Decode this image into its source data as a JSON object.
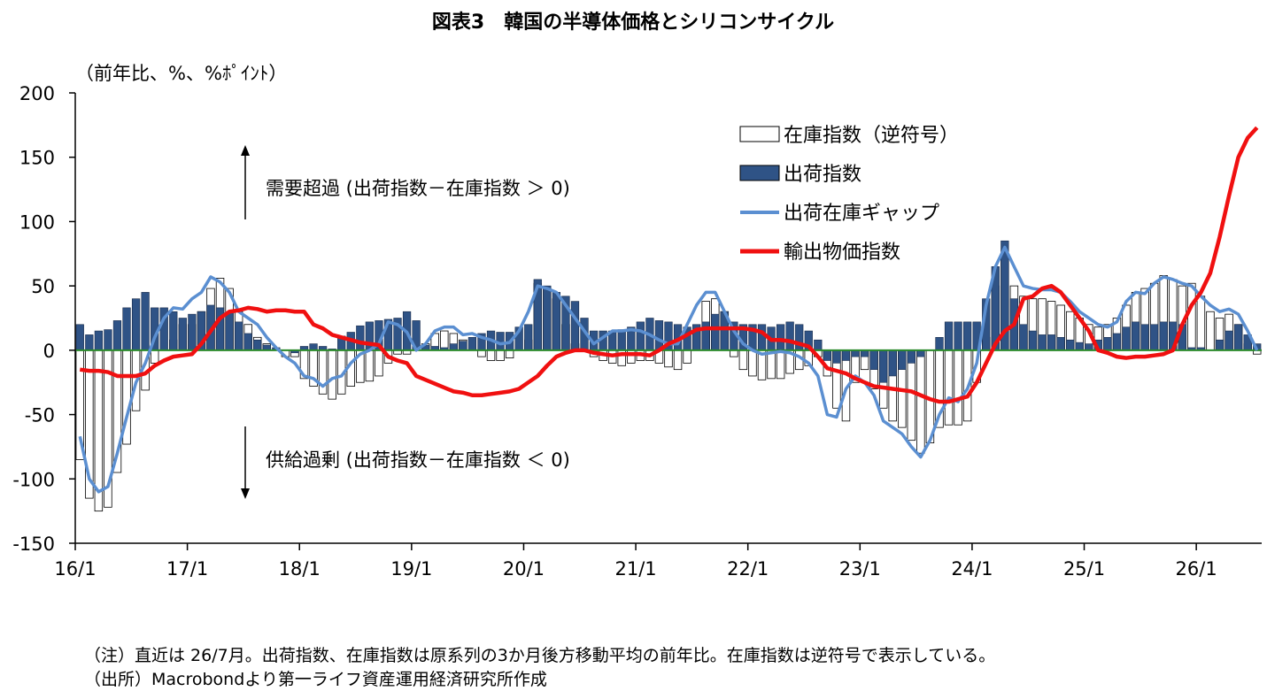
{
  "chart_data": {
    "type": "bar",
    "title": "図表3　韓国の半導体価格とシリコンサイクル",
    "ylabel": "（前年比、%、%ﾎﾟｲﾝﾄ）",
    "ylim": [
      -150,
      200
    ],
    "yticks": [
      200,
      150,
      100,
      50,
      0,
      -50,
      -100,
      -150
    ],
    "x_start": "2016-01",
    "x_end": "2026-07",
    "xticks": [
      "16/1",
      "17/1",
      "18/1",
      "19/1",
      "20/1",
      "21/1",
      "22/1",
      "23/1",
      "24/1",
      "25/1",
      "26/1"
    ],
    "grid": false,
    "legend_position": "top-right",
    "annotations": {
      "upper": "需要超過 (出荷指数－在庫指数 ＞ 0)",
      "lower": "供給過剰 (出荷指数－在庫指数 ＜ 0)"
    },
    "colors": {
      "inventory_fill": "#ffffff",
      "shipment_fill": "#2f5386",
      "gap_line": "#5b8fd1",
      "price_line": "#f01010",
      "zero_line": "#2a8a2a"
    },
    "series": [
      {
        "name": "在庫指数（逆符号）",
        "kind": "bar",
        "months": [
          "2016-01",
          "2016-02",
          "2016-03",
          "2016-04",
          "2016-05",
          "2016-06",
          "2016-07",
          "2016-08",
          "2016-09",
          "2016-10",
          "2016-11",
          "2016-12",
          "2017-01",
          "2017-02",
          "2017-03",
          "2017-04",
          "2017-05",
          "2017-06",
          "2017-07",
          "2017-08",
          "2017-09",
          "2017-10",
          "2017-11",
          "2017-12",
          "2018-01",
          "2018-02",
          "2018-03",
          "2018-04",
          "2018-05",
          "2018-06",
          "2018-07",
          "2018-08",
          "2018-09",
          "2018-10",
          "2018-11",
          "2018-12",
          "2019-01",
          "2019-02",
          "2019-03",
          "2019-04",
          "2019-05",
          "2019-06",
          "2019-07",
          "2019-08",
          "2019-09",
          "2019-10",
          "2019-11",
          "2019-12",
          "2020-01",
          "2020-02",
          "2020-03",
          "2020-04",
          "2020-05",
          "2020-06",
          "2020-07",
          "2020-08",
          "2020-09",
          "2020-10",
          "2020-11",
          "2020-12",
          "2021-01",
          "2021-02",
          "2021-03",
          "2021-04",
          "2021-05",
          "2021-06",
          "2021-07",
          "2021-08",
          "2021-09",
          "2021-10",
          "2021-11",
          "2021-12",
          "2022-01",
          "2022-02",
          "2022-03",
          "2022-04",
          "2022-05",
          "2022-06",
          "2022-07",
          "2022-08",
          "2022-09",
          "2022-10",
          "2022-11",
          "2022-12",
          "2023-01",
          "2023-02",
          "2023-03",
          "2023-04",
          "2023-05",
          "2023-06",
          "2023-07",
          "2023-08",
          "2023-09",
          "2023-10",
          "2023-11",
          "2023-12",
          "2024-01",
          "2024-02",
          "2024-03",
          "2024-04",
          "2024-05",
          "2024-06",
          "2024-07",
          "2024-08",
          "2024-09",
          "2024-10",
          "2024-11",
          "2024-12",
          "2025-01",
          "2025-02",
          "2025-03",
          "2025-04",
          "2025-05",
          "2025-06",
          "2025-07",
          "2025-08",
          "2025-09",
          "2025-10",
          "2025-11",
          "2025-12",
          "2026-01",
          "2026-02",
          "2026-03",
          "2026-04",
          "2026-05",
          "2026-06",
          "2026-07"
        ],
        "values": [
          -85,
          -115,
          -125,
          -122,
          -95,
          -73,
          -47,
          -31,
          -10,
          0,
          8,
          20,
          20,
          30,
          48,
          56,
          48,
          30,
          20,
          10,
          5,
          0,
          -5,
          -5,
          -22,
          -28,
          -34,
          -38,
          -34,
          -28,
          -25,
          -24,
          -20,
          -10,
          -3,
          -3,
          0,
          5,
          13,
          15,
          13,
          8,
          0,
          -5,
          -8,
          -8,
          -6,
          0,
          8,
          52,
          48,
          40,
          20,
          5,
          0,
          -5,
          -8,
          -10,
          -12,
          -10,
          -8,
          -8,
          -10,
          -13,
          -15,
          -10,
          15,
          38,
          40,
          30,
          -5,
          -15,
          -20,
          -23,
          -22,
          -22,
          -18,
          -15,
          -12,
          -5,
          -20,
          -45,
          -55,
          -25,
          -15,
          -30,
          -45,
          -55,
          -60,
          -70,
          -80,
          -72,
          -60,
          -58,
          -58,
          -55,
          -25,
          10,
          50,
          75,
          50,
          42,
          40,
          40,
          38,
          35,
          30,
          25,
          20,
          18,
          20,
          25,
          35,
          45,
          48,
          52,
          58,
          55,
          50,
          52,
          42,
          30,
          25,
          28,
          20,
          5,
          -3
        ]
      },
      {
        "name": "出荷指数",
        "kind": "bar",
        "values": [
          20,
          12,
          15,
          16,
          23,
          33,
          40,
          45,
          33,
          33,
          30,
          25,
          28,
          30,
          35,
          33,
          30,
          22,
          13,
          8,
          4,
          2,
          0,
          -2,
          3,
          5,
          3,
          1,
          11,
          14,
          19,
          22,
          23,
          24,
          25,
          30,
          23,
          4,
          3,
          2,
          5,
          7,
          10,
          13,
          15,
          14,
          14,
          18,
          20,
          55,
          50,
          45,
          42,
          38,
          25,
          15,
          15,
          15,
          16,
          18,
          22,
          25,
          23,
          22,
          20,
          18,
          20,
          22,
          28,
          30,
          22,
          20,
          20,
          20,
          18,
          20,
          22,
          20,
          15,
          8,
          -8,
          -10,
          -8,
          -5,
          -5,
          -15,
          -25,
          -20,
          -15,
          -10,
          -5,
          0,
          10,
          22,
          22,
          22,
          22,
          40,
          65,
          85,
          40,
          20,
          15,
          12,
          12,
          10,
          8,
          6,
          5,
          8,
          10,
          13,
          18,
          22,
          20,
          20,
          22,
          22,
          20,
          2,
          2,
          0,
          8,
          15,
          20,
          12,
          5
        ]
      },
      {
        "name": "出荷在庫ギャップ",
        "kind": "line",
        "values": [
          -67,
          -100,
          -110,
          -106,
          -80,
          -52,
          -25,
          -10,
          10,
          25,
          33,
          32,
          40,
          45,
          57,
          53,
          45,
          30,
          25,
          20,
          10,
          2,
          -5,
          -10,
          -20,
          -22,
          -28,
          -22,
          -20,
          -10,
          -3,
          0,
          5,
          22,
          20,
          14,
          0,
          5,
          15,
          18,
          18,
          12,
          13,
          10,
          8,
          5,
          6,
          15,
          30,
          50,
          48,
          45,
          35,
          25,
          15,
          5,
          10,
          15,
          15,
          16,
          15,
          12,
          8,
          5,
          5,
          20,
          35,
          45,
          45,
          30,
          15,
          5,
          0,
          -3,
          -2,
          -1,
          -2,
          -5,
          -10,
          -20,
          -50,
          -52,
          -30,
          -20,
          -25,
          -35,
          -55,
          -60,
          -65,
          -75,
          -83,
          -70,
          -50,
          -37,
          -40,
          -30,
          -10,
          35,
          65,
          80,
          65,
          50,
          48,
          47,
          47,
          45,
          38,
          30,
          25,
          20,
          18,
          22,
          38,
          45,
          44,
          52,
          57,
          55,
          52,
          50,
          42,
          35,
          30,
          32,
          28,
          15,
          0
        ]
      },
      {
        "name": "輸出物価指数",
        "kind": "line",
        "values": [
          -15,
          -16,
          -16,
          -17,
          -20,
          -20,
          -20,
          -18,
          -12,
          -8,
          -5,
          -4,
          -3,
          5,
          15,
          25,
          30,
          31,
          33,
          32,
          30,
          31,
          31,
          30,
          30,
          20,
          17,
          12,
          10,
          8,
          6,
          5,
          4,
          -5,
          -8,
          -10,
          -20,
          -23,
          -26,
          -29,
          -32,
          -33,
          -35,
          -35,
          -34,
          -33,
          -32,
          -30,
          -25,
          -20,
          -12,
          -5,
          -2,
          0,
          0,
          -2,
          -3,
          -4,
          -3,
          -3,
          -3,
          -4,
          0,
          5,
          8,
          12,
          16,
          17,
          17,
          17,
          17,
          17,
          16,
          14,
          8,
          8,
          7,
          5,
          3,
          -5,
          -14,
          -16,
          -18,
          -22,
          -25,
          -28,
          -29,
          -30,
          -31,
          -32,
          -35,
          -38,
          -40,
          -40,
          -38,
          -36,
          -25,
          -10,
          5,
          15,
          20,
          40,
          42,
          48,
          50,
          45,
          35,
          25,
          15,
          0,
          -2,
          -5,
          -6,
          -5,
          -5,
          -4,
          -3,
          0,
          20,
          35,
          45,
          60,
          88,
          120,
          150,
          165,
          173
        ]
      }
    ]
  },
  "footer": {
    "note": "（注）直近は 26/7月。出荷指数、在庫指数は原系列の3か月後方移動平均の前年比。在庫指数は逆符号で表示している。",
    "source": "（出所）Macrobondより第一ライフ資産運用経済研究所作成"
  }
}
